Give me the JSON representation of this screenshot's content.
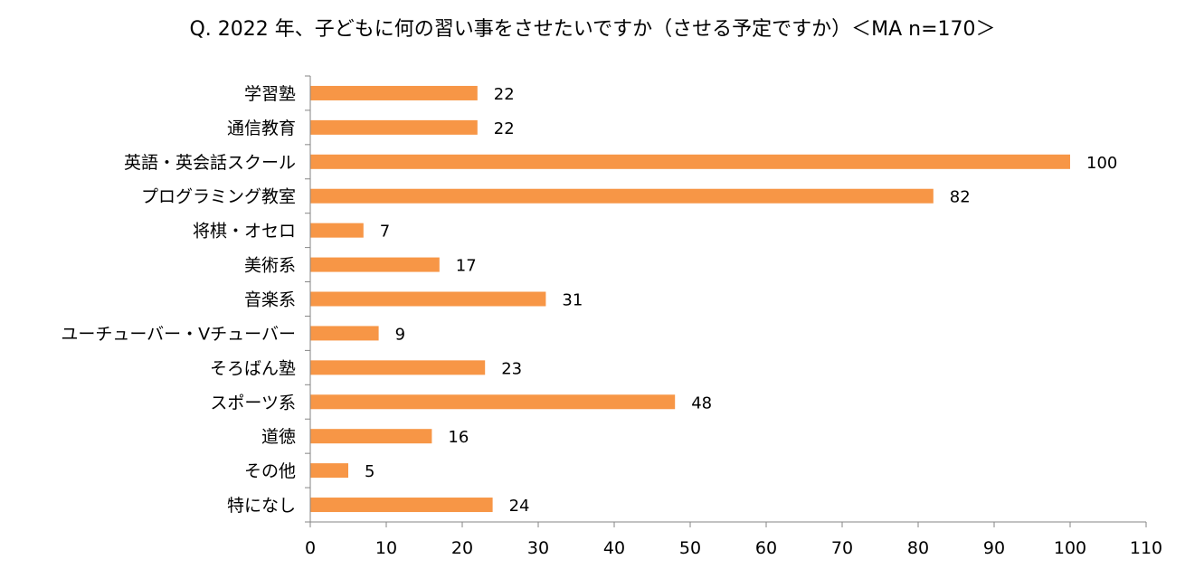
{
  "chart_data": {
    "type": "bar",
    "orientation": "horizontal",
    "title": "Q. 2022 年、子どもに何の習い事をさせたいですか（させる予定ですか）＜MA n=170＞",
    "categories": [
      "学習塾",
      "通信教育",
      "英語・英会話スクール",
      "プログラミング教室",
      "将棋・オセロ",
      "美術系",
      "音楽系",
      "ユーチューバー・Vチューバー",
      "そろばん塾",
      "スポーツ系",
      "道徳",
      "その他",
      "特になし"
    ],
    "values": [
      22,
      22,
      100,
      82,
      7,
      17,
      31,
      9,
      23,
      48,
      16,
      5,
      24
    ],
    "xlim": [
      0,
      110
    ],
    "xticks": [
      0,
      10,
      20,
      30,
      40,
      50,
      60,
      70,
      80,
      90,
      100,
      110
    ],
    "bar_color": "#F79646",
    "data_labels": true,
    "grid": false,
    "legend": "none"
  }
}
